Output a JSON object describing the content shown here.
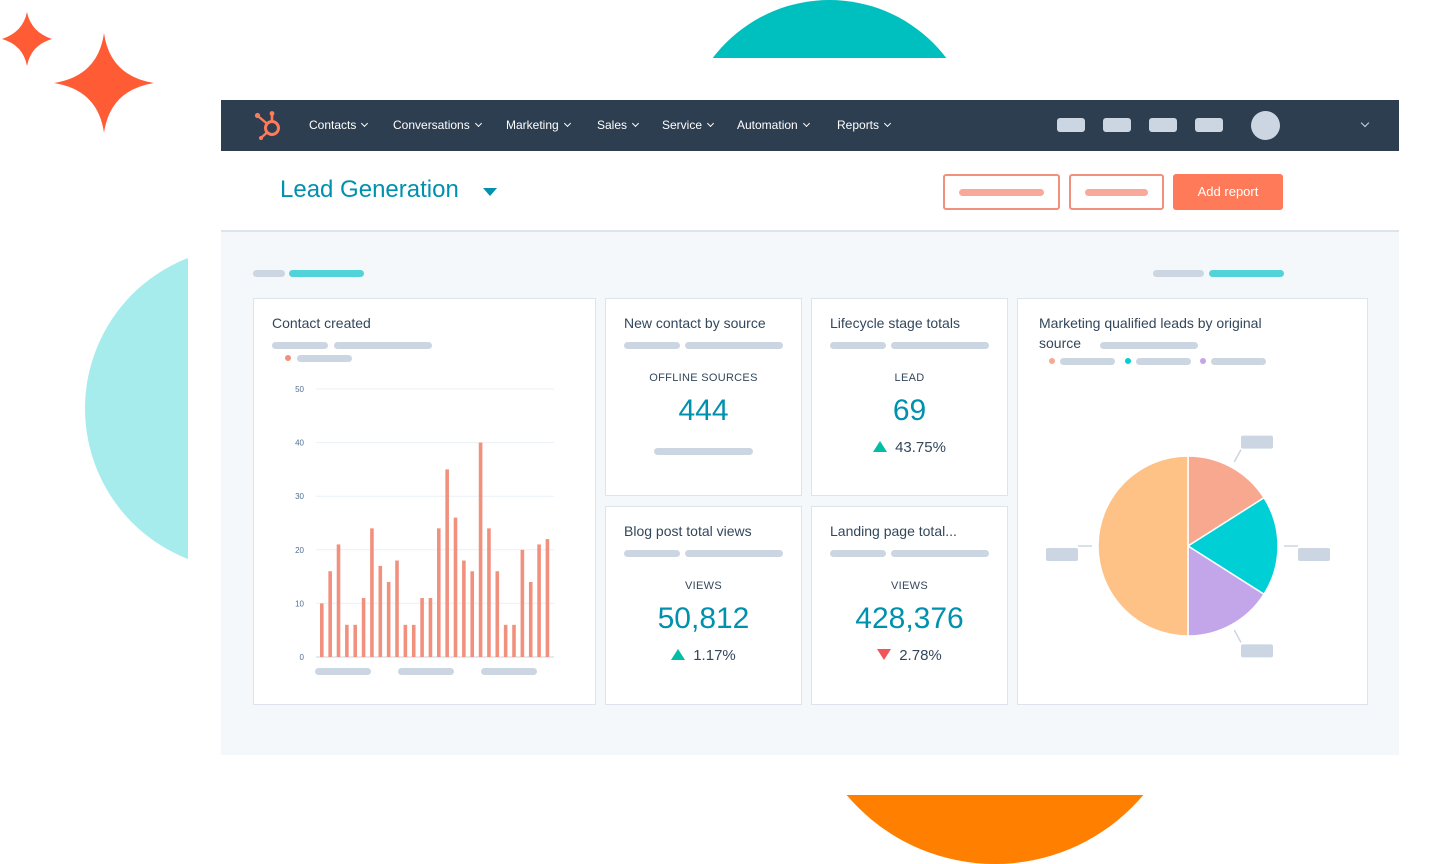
{
  "colors": {
    "nav_bg": "#2d3e50",
    "accent_teal": "#0091ae",
    "primary_orange": "#ff7a59",
    "bar_salmon": "#f2907e",
    "up_green": "#00bda5",
    "down_red": "#f2545b"
  },
  "nav": {
    "logo": "hubspot-sprocket-icon",
    "items": [
      "Contacts",
      "Conversations",
      "Marketing",
      "Sales",
      "Service",
      "Automation",
      "Reports"
    ]
  },
  "page": {
    "title": "Lead Generation",
    "add_report_label": "Add report"
  },
  "cards": {
    "contacts_created": {
      "title": "Contact created"
    },
    "new_contact_by_source": {
      "title": "New contact by source",
      "label": "OFFLINE SOURCES",
      "value": "444"
    },
    "lifecycle_stage_totals": {
      "title": "Lifecycle stage totals",
      "label": "LEAD",
      "value": "69",
      "change": "43.75%",
      "direction": "up"
    },
    "blog_post_total_views": {
      "title": "Blog post total views",
      "label": "VIEWS",
      "value": "50,812",
      "change": "1.17%",
      "direction": "up"
    },
    "landing_page_total": {
      "title": "Landing page total...",
      "label": "VIEWS",
      "value": "428,376",
      "change": "2.78%",
      "direction": "down"
    },
    "mql_by_source": {
      "title_line1": "Marketing qualified leads by original",
      "title_line2": "source"
    }
  },
  "chart_data": [
    {
      "type": "bar",
      "ylim": [
        0,
        50
      ],
      "yticks": [
        "50",
        "40",
        "30",
        "20",
        "10",
        "0"
      ],
      "grid": true,
      "color": "#f2907e",
      "values": [
        10,
        16,
        21,
        6,
        6,
        11,
        24,
        17,
        14,
        18,
        6,
        6,
        11,
        11,
        24,
        35,
        26,
        18,
        16,
        40,
        24,
        16,
        6,
        6,
        20,
        14,
        21,
        22
      ]
    },
    {
      "type": "pie",
      "slices": [
        {
          "value": 16,
          "color": "#f8a88f"
        },
        {
          "value": 18,
          "color": "#00d0d5"
        },
        {
          "value": 16,
          "color": "#c3a6ea"
        },
        {
          "value": 50,
          "color": "#fec287"
        }
      ]
    }
  ]
}
